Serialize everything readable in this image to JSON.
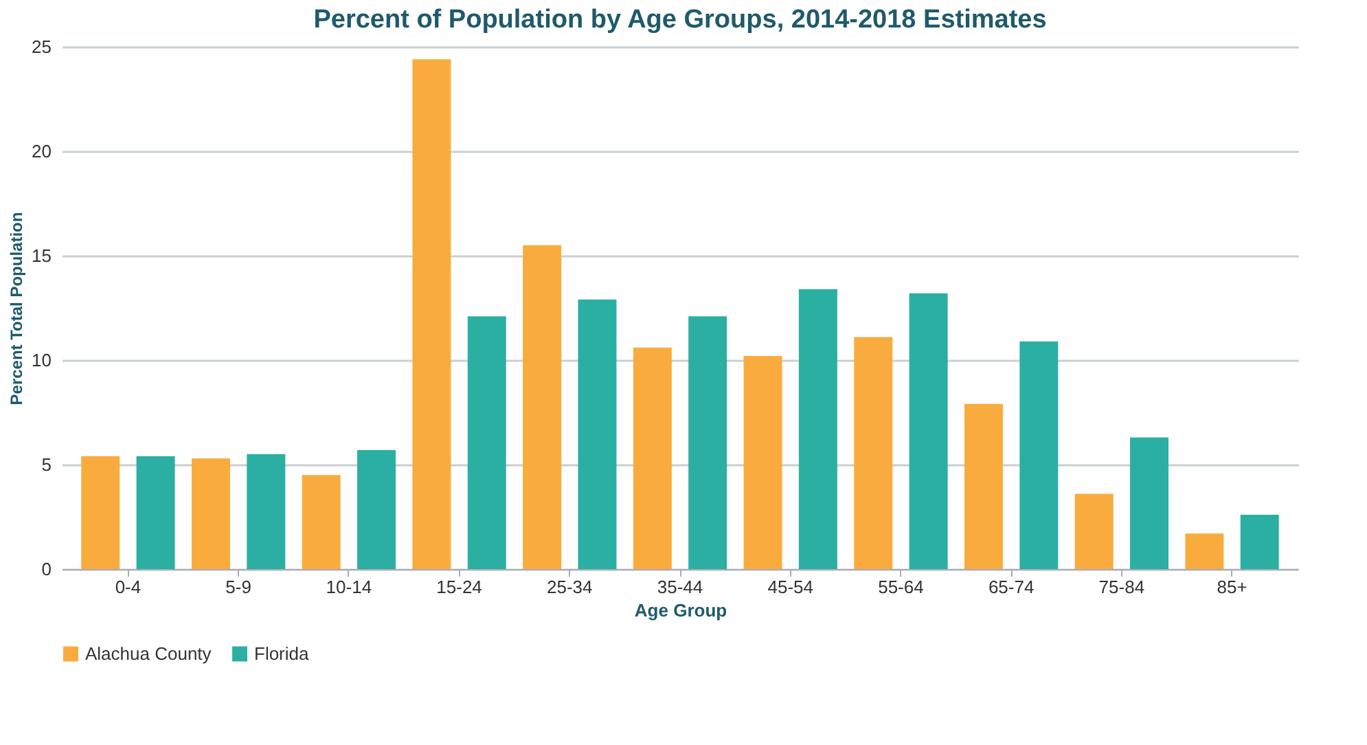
{
  "chart_data": {
    "type": "bar",
    "title": "Percent of Population by Age Groups, 2014-2018 Estimates",
    "xlabel": "Age Group",
    "ylabel": "Percent Total Population",
    "categories": [
      "0-4",
      "5-9",
      "10-14",
      "15-24",
      "25-34",
      "35-44",
      "45-54",
      "55-64",
      "65-74",
      "75-84",
      "85+"
    ],
    "series": [
      {
        "name": "Alachua County",
        "color": "#f9ac3d",
        "values": [
          5.4,
          5.3,
          4.5,
          24.4,
          15.5,
          10.6,
          10.2,
          11.1,
          7.9,
          3.6,
          1.7
        ]
      },
      {
        "name": "Florida",
        "color": "#2bafa3",
        "values": [
          5.4,
          5.5,
          5.7,
          12.1,
          12.9,
          12.1,
          13.4,
          13.2,
          10.9,
          6.3,
          2.6
        ]
      }
    ],
    "ylim": [
      0,
      25
    ],
    "yticks": [
      0,
      5,
      10,
      15,
      20,
      25
    ],
    "grid": "y",
    "legend": "bottom"
  }
}
